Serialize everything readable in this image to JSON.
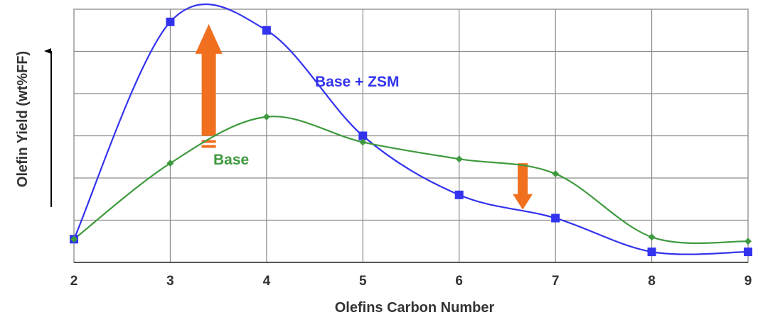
{
  "chart_data": {
    "type": "line",
    "xlabel": "Olefins Carbon Number",
    "ylabel": "Olefin Yield (wt%FF)",
    "x": [
      2,
      3,
      4,
      5,
      6,
      7,
      8,
      9
    ],
    "xlim": [
      2,
      9
    ],
    "ylim": [
      0,
      6
    ],
    "y_tick_labels_shown": false,
    "grid": true,
    "series": [
      {
        "name": "Base + ZSM",
        "color": "#3333ee",
        "marker": "square",
        "values": [
          0.55,
          5.7,
          5.5,
          3.0,
          1.6,
          1.05,
          0.25,
          0.25
        ]
      },
      {
        "name": "Base",
        "color": "#3f9a3f",
        "marker": "diamond",
        "values": [
          0.55,
          2.35,
          3.45,
          2.85,
          2.45,
          2.1,
          0.6,
          0.5
        ]
      }
    ],
    "annotations": [
      {
        "type": "arrow",
        "direction": "up",
        "color": "#f07020",
        "at_x": 3.4,
        "from_y": 3.0,
        "to_y": 5.65
      },
      {
        "type": "arrow",
        "direction": "down",
        "color": "#f07020",
        "at_x": 6.66,
        "from_y": 2.35,
        "to_y": 1.25
      },
      {
        "type": "axis-arrow",
        "direction": "up",
        "color": "#000000"
      }
    ]
  }
}
